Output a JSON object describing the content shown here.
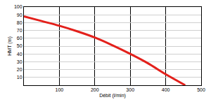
{
  "chart_data": {
    "type": "line",
    "x_label": "Débit (l/min)",
    "y_label": "HMT (m)",
    "x": [
      0,
      50,
      100,
      150,
      200,
      250,
      300,
      350,
      400,
      455
    ],
    "values": [
      88,
      82,
      76,
      69,
      61,
      51,
      40,
      28,
      14,
      0
    ],
    "color": "#e3201b",
    "xlim": [
      0,
      500
    ],
    "xticks": [
      100,
      200,
      300,
      400,
      500
    ],
    "ylim": [
      0,
      100
    ],
    "yticks": [
      10,
      20,
      30,
      40,
      50,
      60,
      70,
      80,
      90,
      100
    ],
    "grid": true
  }
}
